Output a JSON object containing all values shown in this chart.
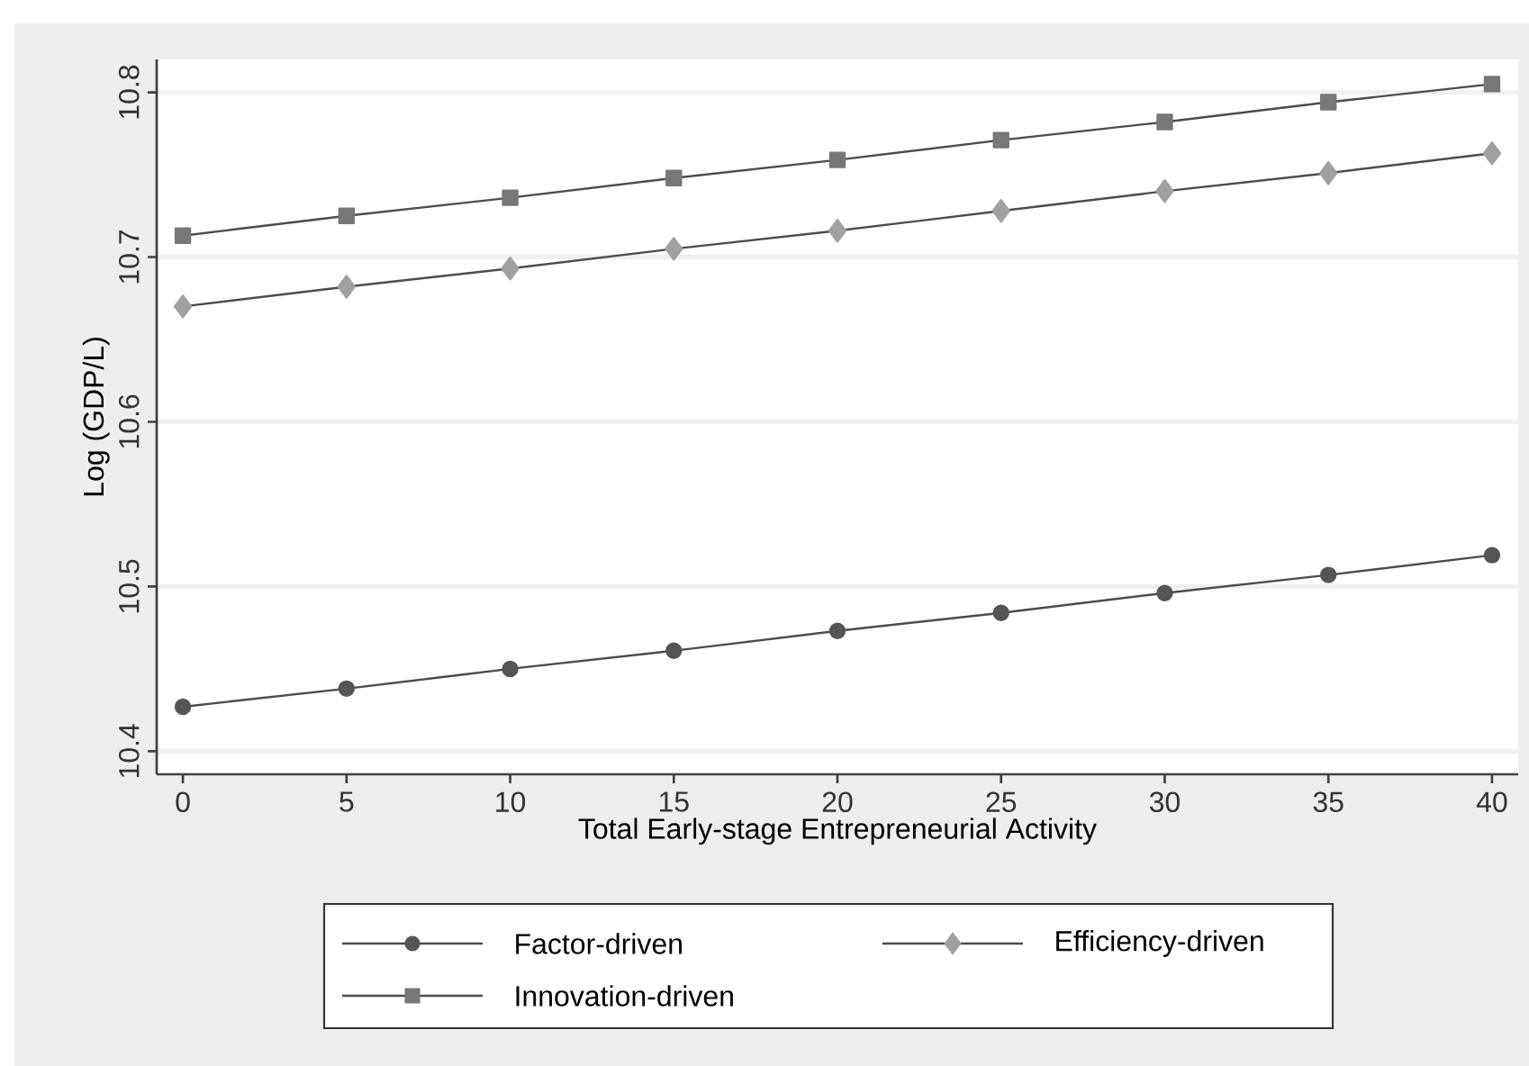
{
  "chart_data": {
    "type": "line",
    "xlabel": "Total Early-stage Entrepreneurial Activity",
    "ylabel": "Log (GDP/L)",
    "x": [
      0,
      5,
      10,
      15,
      20,
      25,
      30,
      35,
      40
    ],
    "series": [
      {
        "name": "Factor-driven",
        "color": "#555555",
        "marker": "circle",
        "values": [
          10.427,
          10.438,
          10.45,
          10.461,
          10.473,
          10.484,
          10.496,
          10.507,
          10.519
        ]
      },
      {
        "name": "Efficiency-driven",
        "color": "#a0a0a0",
        "marker": "diamond",
        "values": [
          10.67,
          10.682,
          10.693,
          10.705,
          10.716,
          10.728,
          10.74,
          10.751,
          10.763
        ]
      },
      {
        "name": "Innovation-driven",
        "color": "#777777",
        "marker": "square",
        "values": [
          10.713,
          10.725,
          10.736,
          10.748,
          10.759,
          10.771,
          10.782,
          10.794,
          10.805
        ]
      }
    ],
    "xlim": [
      -0.8,
      40.8
    ],
    "ylim": [
      10.386,
      10.82
    ],
    "xticks": [
      0,
      5,
      10,
      15,
      20,
      25,
      30,
      35,
      40
    ],
    "yticks": [
      10.4,
      10.5,
      10.6,
      10.7,
      10.8
    ],
    "grid": "y",
    "legend": "bottom",
    "line_style": "solid"
  }
}
